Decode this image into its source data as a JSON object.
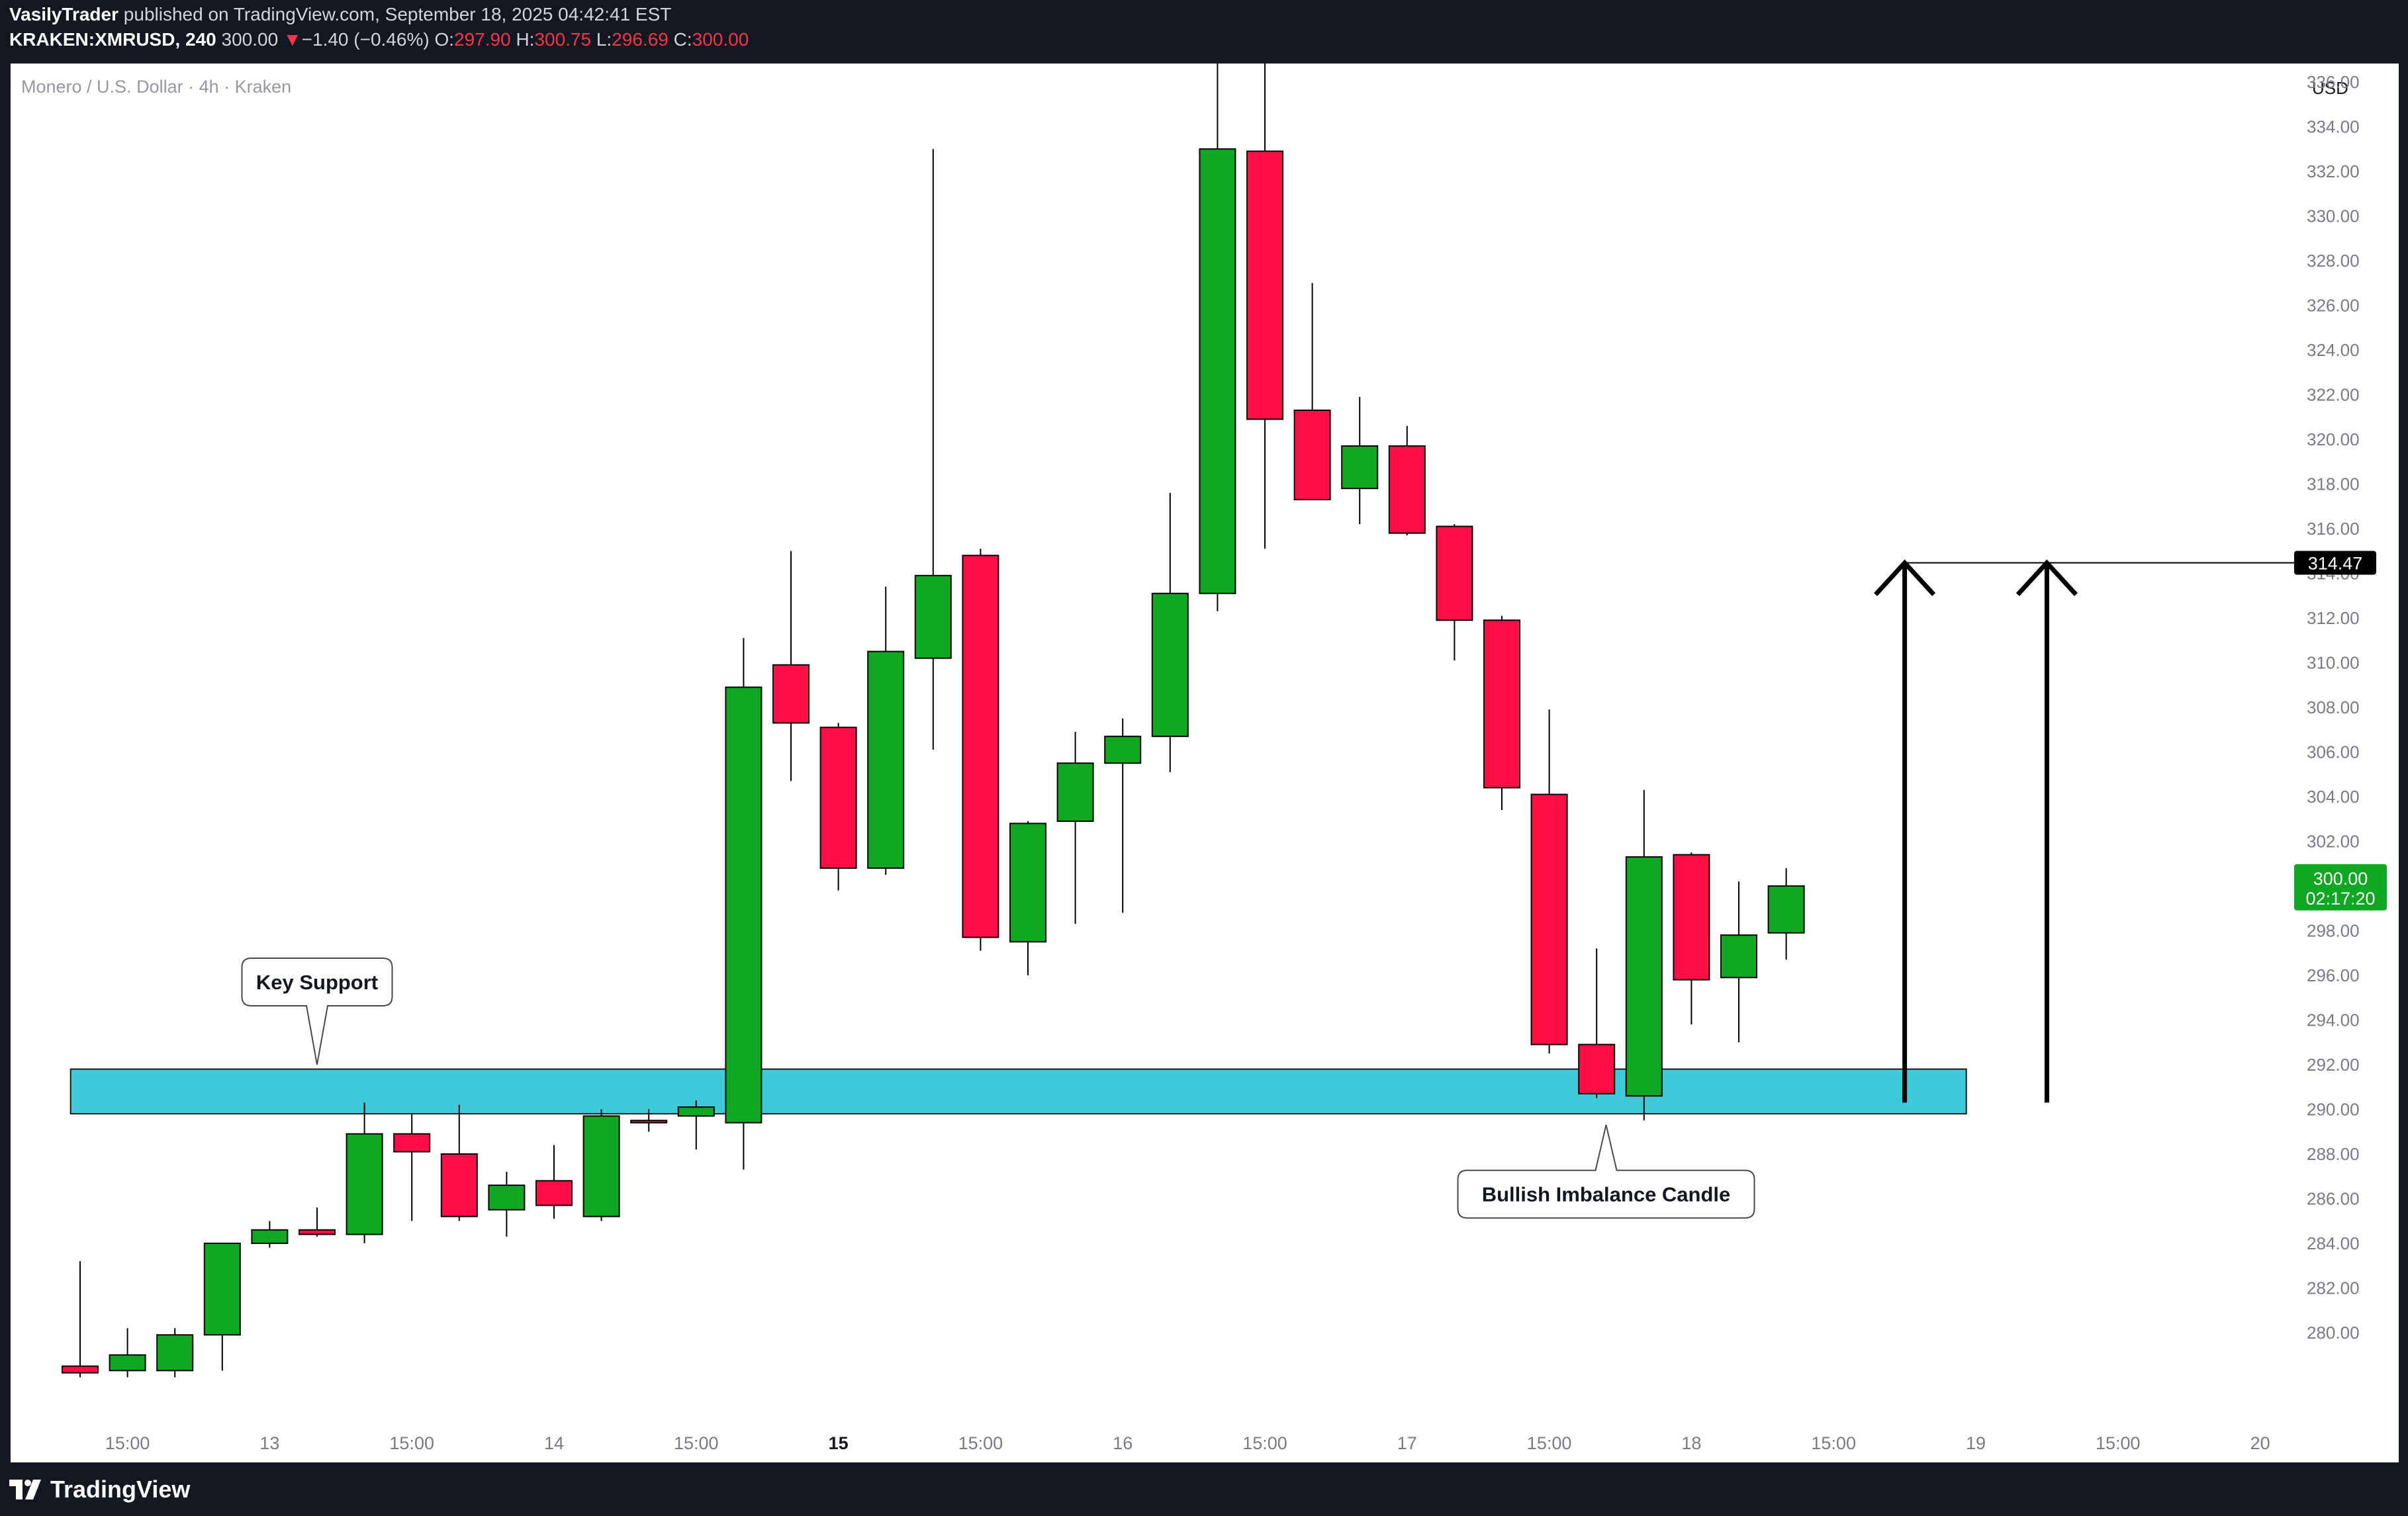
{
  "header": {
    "author": "VasilyTrader",
    "published_text": "published on TradingView.com, September 18, 2025 04:42:41 EST",
    "symbol": "KRAKEN:XMRUSD, 240",
    "last": "300.00",
    "change_arrow": "▼",
    "change": "−1.40 (−0.46%)",
    "o_label": "O:",
    "o_value": "297.90",
    "h_label": "H:",
    "h_value": "300.75",
    "l_label": "L:",
    "l_value": "296.69",
    "c_label": "C:",
    "c_value": "300.00"
  },
  "footer": {
    "brand": "TradingView"
  },
  "colors": {
    "up": "#10a722",
    "down": "#ff0e47",
    "zone": "#3ecad9",
    "axis_text": "#787b86",
    "background": "#ffffff",
    "frame": "#131722"
  },
  "chart_data": {
    "type": "candlestick",
    "title": "Monero / U.S. Dollar · 4h · Kraken",
    "currency": "USD",
    "ylim": [
      278.7,
      337.6
    ],
    "y_ticks": [
      280,
      282,
      284,
      286,
      288,
      290,
      292,
      294,
      296,
      298,
      300,
      302,
      304,
      306,
      308,
      310,
      312,
      314,
      316,
      318,
      320,
      322,
      324,
      326,
      328,
      330,
      332,
      334,
      336
    ],
    "x_ticks": [
      {
        "i": 1,
        "label": "15:00"
      },
      {
        "i": 4,
        "label": "13"
      },
      {
        "i": 7,
        "label": "15:00"
      },
      {
        "i": 10,
        "label": "14"
      },
      {
        "i": 13,
        "label": "15:00"
      },
      {
        "i": 16,
        "label": "15",
        "bold": true
      },
      {
        "i": 19,
        "label": "15:00"
      },
      {
        "i": 22,
        "label": "16"
      },
      {
        "i": 25,
        "label": "15:00"
      },
      {
        "i": 28,
        "label": "17"
      },
      {
        "i": 31,
        "label": "15:00"
      },
      {
        "i": 34,
        "label": "18"
      },
      {
        "i": 37,
        "label": "15:00"
      },
      {
        "i": 40,
        "label": "19"
      },
      {
        "i": 43,
        "label": "15:00"
      },
      {
        "i": 46,
        "label": "20"
      }
    ],
    "candles": [
      {
        "o": 278.5,
        "h": 283.2,
        "l": 278.0,
        "c": 278.2
      },
      {
        "o": 278.3,
        "h": 280.2,
        "l": 278.0,
        "c": 279.0
      },
      {
        "o": 278.3,
        "h": 280.2,
        "l": 278.0,
        "c": 279.9
      },
      {
        "o": 279.9,
        "h": 284.0,
        "l": 278.3,
        "c": 284.0
      },
      {
        "o": 284.0,
        "h": 285.0,
        "l": 283.8,
        "c": 284.6
      },
      {
        "o": 284.6,
        "h": 285.6,
        "l": 284.3,
        "c": 284.4
      },
      {
        "o": 284.4,
        "h": 290.3,
        "l": 284.0,
        "c": 288.9
      },
      {
        "o": 288.9,
        "h": 289.8,
        "l": 285.0,
        "c": 288.1
      },
      {
        "o": 288.0,
        "h": 290.2,
        "l": 285.0,
        "c": 285.2
      },
      {
        "o": 285.5,
        "h": 287.2,
        "l": 284.3,
        "c": 286.6
      },
      {
        "o": 286.8,
        "h": 288.4,
        "l": 285.1,
        "c": 285.7
      },
      {
        "o": 285.2,
        "h": 290.0,
        "l": 285.0,
        "c": 289.7
      },
      {
        "o": 289.5,
        "h": 290.0,
        "l": 289.0,
        "c": 289.4
      },
      {
        "o": 289.7,
        "h": 290.4,
        "l": 288.2,
        "c": 290.1
      },
      {
        "o": 289.4,
        "h": 311.1,
        "l": 287.3,
        "c": 308.9
      },
      {
        "o": 309.9,
        "h": 315.0,
        "l": 304.7,
        "c": 307.3
      },
      {
        "o": 307.1,
        "h": 307.3,
        "l": 299.8,
        "c": 300.8
      },
      {
        "o": 300.8,
        "h": 313.4,
        "l": 300.5,
        "c": 310.5
      },
      {
        "o": 310.2,
        "h": 333.0,
        "l": 306.1,
        "c": 313.9
      },
      {
        "o": 314.8,
        "h": 315.1,
        "l": 297.1,
        "c": 297.7
      },
      {
        "o": 297.5,
        "h": 302.9,
        "l": 296.0,
        "c": 302.8
      },
      {
        "o": 302.9,
        "h": 306.9,
        "l": 298.3,
        "c": 305.5
      },
      {
        "o": 305.5,
        "h": 307.5,
        "l": 298.8,
        "c": 306.7
      },
      {
        "o": 306.7,
        "h": 317.6,
        "l": 305.1,
        "c": 313.1
      },
      {
        "o": 313.1,
        "h": 340.0,
        "l": 312.3,
        "c": 333.0
      },
      {
        "o": 332.9,
        "h": 340.0,
        "l": 315.1,
        "c": 320.9
      },
      {
        "o": 321.3,
        "h": 327.0,
        "l": 317.3,
        "c": 317.3
      },
      {
        "o": 317.8,
        "h": 321.9,
        "l": 316.2,
        "c": 319.7
      },
      {
        "o": 319.7,
        "h": 320.6,
        "l": 315.7,
        "c": 315.8
      },
      {
        "o": 316.1,
        "h": 316.2,
        "l": 310.1,
        "c": 311.9
      },
      {
        "o": 311.9,
        "h": 312.1,
        "l": 303.4,
        "c": 304.4
      },
      {
        "o": 304.1,
        "h": 307.9,
        "l": 292.5,
        "c": 292.9
      },
      {
        "o": 292.9,
        "h": 297.2,
        "l": 290.5,
        "c": 290.7
      },
      {
        "o": 290.6,
        "h": 304.3,
        "l": 289.5,
        "c": 301.3
      },
      {
        "o": 301.4,
        "h": 301.5,
        "l": 293.8,
        "c": 295.8
      },
      {
        "o": 295.9,
        "h": 300.2,
        "l": 293.0,
        "c": 297.8
      },
      {
        "o": 297.9,
        "h": 300.8,
        "l": 296.7,
        "c": 300.0
      }
    ],
    "support_zone": {
      "from": 289.8,
      "to": 291.8,
      "i_start": -0.2,
      "i_end": 39.8
    },
    "target_level": 314.47,
    "arrows": [
      {
        "i": 38.5,
        "from": 290.3,
        "to": 314.47
      },
      {
        "i": 41.5,
        "from": 290.3,
        "to": 314.47
      }
    ],
    "target_line": {
      "i_start": 38.5,
      "i_end": 46.7
    },
    "current_price": "300.00",
    "countdown": "02:17:20",
    "annotations": [
      {
        "text": "Key Support",
        "i": 5.0,
        "price": 295.7,
        "pointer_price": 292.0
      },
      {
        "text": "Bullish Imbalance Candle",
        "i": 32.2,
        "price": 286.2,
        "pointer_price": 289.3
      }
    ]
  }
}
